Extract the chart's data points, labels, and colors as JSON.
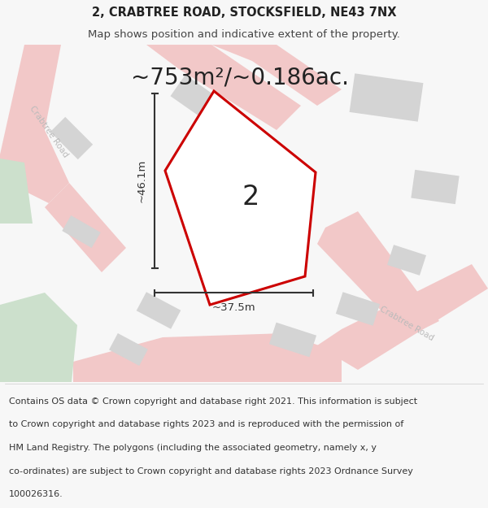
{
  "title_line1": "2, CRABTREE ROAD, STOCKSFIELD, NE43 7NX",
  "title_line2": "Map shows position and indicative extent of the property.",
  "area_text": "~753m²/~0.186ac.",
  "plot_number": "2",
  "dim_width": "~37.5m",
  "dim_height": "~46.1m",
  "road_label_left": "Crabtree Road",
  "road_label_right": "Crabtree Road",
  "footer_lines": [
    "Contains OS data © Crown copyright and database right 2021. This information is subject",
    "to Crown copyright and database rights 2023 and is reproduced with the permission of",
    "HM Land Registry. The polygons (including the associated geometry, namely x, y",
    "co-ordinates) are subject to Crown copyright and database rights 2023 Ordnance Survey",
    "100026316."
  ],
  "bg_color": "#f7f7f7",
  "map_bg": "#ffffff",
  "plot_fill": "#ffffff",
  "plot_edge": "#cc0000",
  "road_color": "#f2c8c8",
  "building_color": "#d4d4d4",
  "green_color": "#cce0cc",
  "dim_color": "#333333",
  "road_text_color": "#bbbbbb",
  "title_fontsize": 10.5,
  "subtitle_fontsize": 9.5,
  "area_fontsize": 20,
  "footer_fontsize": 8.0,
  "plot_number_fontsize": 24
}
